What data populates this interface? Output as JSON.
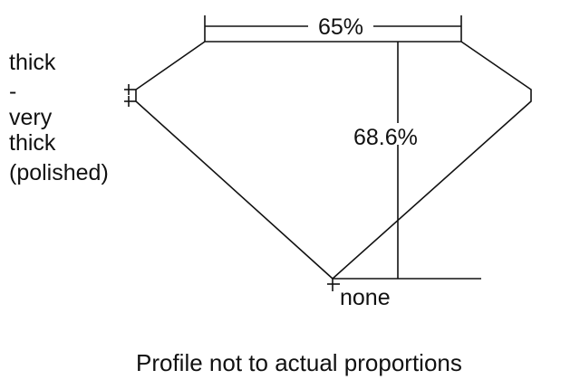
{
  "labels": {
    "table_percent": "65%",
    "depth_percent": "68.6%",
    "culet": "none",
    "girdle_lines": [
      "thick",
      "-",
      "very",
      "thick",
      "(polished)"
    ],
    "caption": "Profile not to actual proportions"
  },
  "colors": {
    "line": "#111111",
    "background": "#ffffff"
  }
}
